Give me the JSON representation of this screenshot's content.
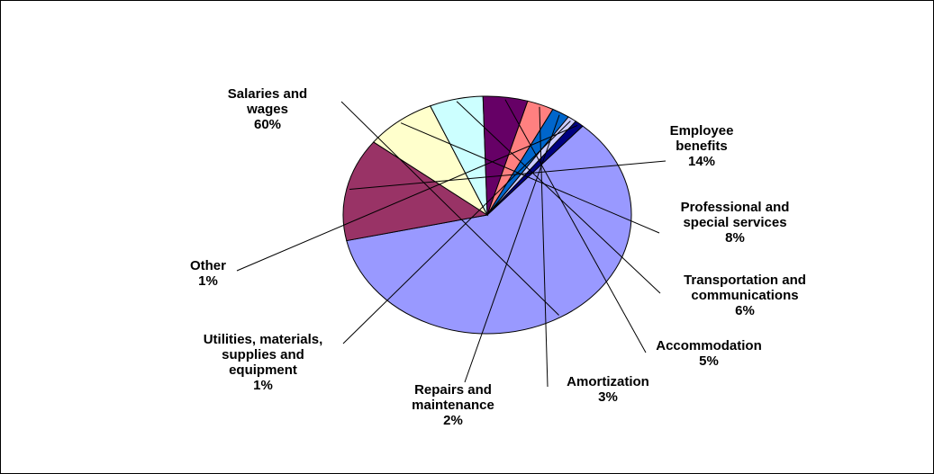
{
  "chart_data": {
    "type": "pie",
    "title": "",
    "slices": [
      {
        "label": [
          "Salaries and",
          "wages"
        ],
        "value_label": "60%",
        "value": 60,
        "color": "#9999FF"
      },
      {
        "label": [
          "Employee",
          "benefits"
        ],
        "value_label": "14%",
        "value": 14,
        "color": "#993366"
      },
      {
        "label": [
          "Professional and",
          "special services"
        ],
        "value_label": "8%",
        "value": 8,
        "color": "#FFFFCC"
      },
      {
        "label": [
          "Transportation and",
          "communications"
        ],
        "value_label": "6%",
        "value": 6,
        "color": "#CCFFFF"
      },
      {
        "label": [
          "Accommodation"
        ],
        "value_label": "5%",
        "value": 5,
        "color": "#660066"
      },
      {
        "label": [
          "Amortization"
        ],
        "value_label": "3%",
        "value": 3,
        "color": "#FF8080"
      },
      {
        "label": [
          "Repairs and",
          "maintenance"
        ],
        "value_label": "2%",
        "value": 2,
        "color": "#0066CC"
      },
      {
        "label": [
          "Utilities, materials,",
          "supplies and",
          "equipment"
        ],
        "value_label": "1%",
        "value": 1,
        "color": "#CCCCFF"
      },
      {
        "label": [
          "Other"
        ],
        "value_label": "1%",
        "value": 1,
        "color": "#000080"
      }
    ]
  }
}
